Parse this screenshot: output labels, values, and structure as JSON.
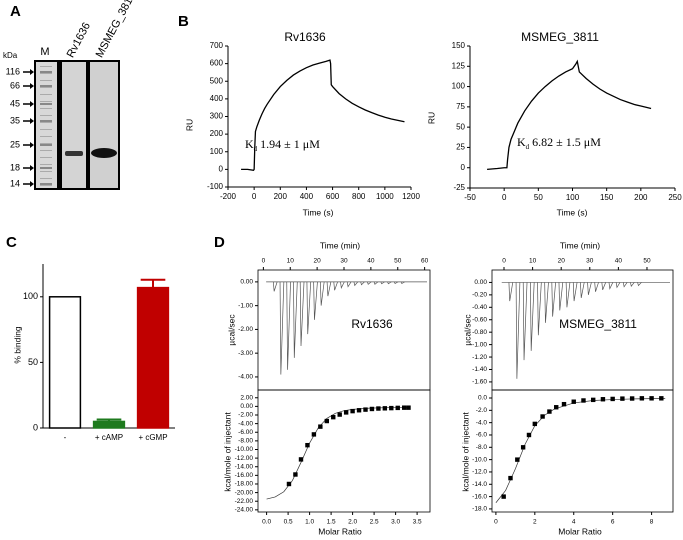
{
  "panel_labels": [
    "A",
    "B",
    "C",
    "D"
  ],
  "gel": {
    "unit": "kDa",
    "lanes": [
      "M",
      "Rv1636",
      "MSMEG_3811"
    ],
    "markers": [
      116,
      66,
      45,
      35,
      25,
      18,
      14
    ]
  },
  "chart_data": [
    {
      "type": "line",
      "title": "Rv1636",
      "xlabel": "Time (s)",
      "ylabel": "RU",
      "annotation": [
        "K",
        "d",
        " 1.94 ± 1 μM"
      ],
      "color": "#000000",
      "x": [
        -100,
        -50,
        -5,
        0,
        5,
        10,
        20,
        40,
        60,
        80,
        100,
        150,
        200,
        250,
        300,
        350,
        400,
        450,
        500,
        550,
        580,
        585,
        590,
        600,
        650,
        700,
        750,
        800,
        850,
        900,
        950,
        1000,
        1050,
        1100,
        1150
      ],
      "values": [
        0,
        0,
        -5,
        0,
        130,
        215,
        240,
        280,
        315,
        345,
        370,
        425,
        470,
        505,
        535,
        558,
        577,
        592,
        603,
        613,
        620,
        600,
        480,
        470,
        430,
        400,
        375,
        355,
        337,
        322,
        308,
        296,
        286,
        278,
        270
      ],
      "xlim": [
        -200,
        1200
      ],
      "xticks": [
        -200,
        0,
        200,
        400,
        600,
        800,
        1000,
        1200
      ],
      "ylim": [
        -100,
        700
      ],
      "yticks": [
        -100,
        0,
        100,
        200,
        300,
        400,
        500,
        600,
        700
      ],
      "frame": false
    },
    {
      "type": "line",
      "title": "MSMEG_3811",
      "xlabel": "Time (s)",
      "ylabel": "RU",
      "annotation": [
        "K",
        "d",
        " 6.82 ± 1.5 μM"
      ],
      "color": "#000000",
      "x": [
        -25,
        -10,
        0,
        4,
        5,
        7,
        10,
        15,
        20,
        30,
        40,
        50,
        60,
        70,
        80,
        90,
        100,
        105,
        107,
        110,
        120,
        130,
        140,
        150,
        160,
        170,
        180,
        190,
        200,
        215
      ],
      "values": [
        -2,
        -1,
        0,
        0,
        10,
        25,
        35,
        45,
        55,
        70,
        82,
        92,
        100,
        107,
        113,
        118,
        122,
        128,
        131,
        118,
        110,
        103,
        97,
        92,
        88,
        84,
        81,
        78,
        76,
        73
      ],
      "xlim": [
        -50,
        250
      ],
      "xticks": [
        -50,
        0,
        50,
        100,
        150,
        200,
        250
      ],
      "ylim": [
        -25,
        150
      ],
      "yticks": [
        -25,
        0,
        25,
        50,
        75,
        100,
        125,
        150
      ],
      "frame": false
    },
    {
      "type": "bar",
      "ylabel": "% binding",
      "categories": [
        "-",
        "+ cAMP",
        "+ cGMP"
      ],
      "values": [
        100,
        5,
        107
      ],
      "errors": [
        null,
        1.5,
        6
      ],
      "colors": [
        "#ffffff",
        "#1e7a1e",
        "#c00000"
      ],
      "ylim": [
        0,
        125
      ],
      "yticks": [
        0,
        50,
        100
      ],
      "frame": false
    },
    {
      "type": "spikes",
      "xlabel": "Time (min)",
      "ylabel": "µcal/sec",
      "annotation": "Rv1636",
      "xaxis_position": "top",
      "color": "#555555",
      "x": [
        4,
        6.5,
        9,
        11.5,
        14,
        16.5,
        19,
        21.5,
        24,
        26.5,
        29,
        31.5,
        34,
        36.5,
        39,
        41.5,
        44,
        46.5,
        49,
        51.5
      ],
      "values": [
        -0.4,
        -3.9,
        -3.7,
        -3.2,
        -2.7,
        -2.2,
        -1.6,
        -1.0,
        -0.6,
        -0.35,
        -0.25,
        -0.2,
        -0.15,
        -0.12,
        -0.1,
        -0.1,
        -0.08,
        -0.08,
        -0.07,
        -0.07
      ],
      "xlim": [
        -2,
        62
      ],
      "xticks": [
        0,
        10,
        20,
        30,
        40,
        50,
        60
      ],
      "ylim": [
        -4.55,
        0.5
      ],
      "yticks": [
        {
          "value": 0,
          "label": "0.00"
        },
        {
          "value": -1,
          "label": "-1.00"
        },
        {
          "value": -2,
          "label": "-2.00"
        },
        {
          "value": -3,
          "label": "-3.00"
        },
        {
          "value": -4,
          "label": "-4.00"
        }
      ],
      "frame": true
    },
    {
      "type": "itc",
      "xlabel": "Molar Ratio",
      "ylabel": "kcal/mole of injectant",
      "color": "#000000",
      "x": [
        0.52,
        0.67,
        0.8,
        0.95,
        1.1,
        1.25,
        1.4,
        1.55,
        1.7,
        1.85,
        2.0,
        2.15,
        2.3,
        2.45,
        2.6,
        2.75,
        2.9,
        3.05,
        3.2,
        3.3
      ],
      "values": [
        -18,
        -15.8,
        -12.3,
        -9,
        -6.5,
        -4.7,
        -3.4,
        -2.5,
        -1.9,
        -1.4,
        -1.1,
        -0.9,
        -0.75,
        -0.6,
        -0.5,
        -0.45,
        -0.4,
        -0.35,
        -0.3,
        -0.3
      ],
      "fit_x": [
        0,
        0.2,
        0.4,
        0.6,
        0.8,
        1.0,
        1.2,
        1.4,
        1.6,
        1.8,
        2.0,
        2.4,
        2.8,
        3.3
      ],
      "fit_values": [
        -21.5,
        -21,
        -19.8,
        -17.2,
        -13,
        -8.5,
        -5,
        -2.8,
        -1.6,
        -1.0,
        -0.7,
        -0.4,
        -0.3,
        -0.25
      ],
      "xlim": [
        -0.2,
        3.8
      ],
      "xticks": [
        {
          "value": 0,
          "label": "0.0"
        },
        0.5,
        {
          "value": 1,
          "label": "1.0"
        },
        1.5,
        {
          "value": 2,
          "label": "2.0"
        },
        2.5,
        {
          "value": 3,
          "label": "3.0"
        },
        3.5
      ],
      "ylim": [
        -24.5,
        3.8
      ],
      "yticks": [
        {
          "value": 2,
          "label": "2.00"
        },
        {
          "value": 0,
          "label": "0.00"
        },
        {
          "value": -2,
          "label": "-2.00"
        },
        {
          "value": -4,
          "label": "-4.00"
        },
        {
          "value": -6,
          "label": "-6.00"
        },
        {
          "value": -8,
          "label": "-8.00"
        },
        {
          "value": -10,
          "label": "-10.00"
        },
        {
          "value": -12,
          "label": "-12.00"
        },
        {
          "value": -14,
          "label": "-14.00"
        },
        {
          "value": -16,
          "label": "-16.00"
        },
        {
          "value": -18,
          "label": "-18.00"
        },
        {
          "value": -20,
          "label": "-20.00"
        },
        {
          "value": -22,
          "label": "-22.00"
        },
        {
          "value": -24,
          "label": "-24.00"
        }
      ],
      "frame": true
    },
    {
      "type": "spikes",
      "xlabel": "Time (min)",
      "ylabel": "µcal/sec",
      "annotation": "MSMEG_3811",
      "xaxis_position": "top",
      "color": "#555555",
      "x": [
        2,
        4.5,
        7,
        9.5,
        12,
        14.5,
        17,
        19.5,
        22,
        24.5,
        27,
        29.5,
        32,
        34.5,
        37,
        39.5,
        42,
        44.5,
        47
      ],
      "values": [
        -0.3,
        -1.55,
        -1.25,
        -1.1,
        -0.85,
        -0.65,
        -0.55,
        -0.45,
        -0.4,
        -0.3,
        -0.25,
        -0.2,
        -0.15,
        -0.12,
        -0.1,
        -0.08,
        -0.07,
        -0.06,
        -0.05
      ],
      "xlim": [
        -4.2,
        59.1
      ],
      "xticks": [
        0,
        10,
        20,
        30,
        40,
        50
      ],
      "ylim": [
        -1.73,
        0.2
      ],
      "yticks": [
        {
          "value": 0,
          "label": "0.00"
        },
        {
          "value": -0.2,
          "label": "-0.20"
        },
        {
          "value": -0.4,
          "label": "-0.40"
        },
        {
          "value": -0.6,
          "label": "-0.60"
        },
        {
          "value": -0.8,
          "label": "-0.80"
        },
        {
          "value": -1,
          "label": "-1.00"
        },
        {
          "value": -1.2,
          "label": "-1.20"
        },
        {
          "value": -1.4,
          "label": "-1.40"
        },
        {
          "value": -1.6,
          "label": "-1.60"
        }
      ],
      "frame": true
    },
    {
      "type": "itc",
      "xlabel": "Molar Ratio",
      "ylabel": "kcal/mole of injectant",
      "color": "#000000",
      "x": [
        0.4,
        0.75,
        1.1,
        1.4,
        1.7,
        2.0,
        2.4,
        2.75,
        3.1,
        3.5,
        4.0,
        4.5,
        5.0,
        5.5,
        6.0,
        6.5,
        7.0,
        7.5,
        8.0,
        8.5
      ],
      "values": [
        -16,
        -13,
        -10,
        -8,
        -6,
        -4.2,
        -3.0,
        -2.2,
        -1.5,
        -1.0,
        -0.6,
        -0.4,
        -0.3,
        -0.2,
        -0.15,
        -0.1,
        -0.08,
        -0.05,
        -0.05,
        -0.05
      ],
      "fit_x": [
        0,
        0.5,
        1,
        1.5,
        2,
        2.5,
        3,
        4,
        5,
        6,
        7,
        8,
        8.7
      ],
      "fit_values": [
        -17,
        -15,
        -11.5,
        -7.5,
        -4.5,
        -2.8,
        -1.8,
        -0.8,
        -0.4,
        -0.25,
        -0.15,
        -0.1,
        -0.08
      ],
      "xlim": [
        -0.2,
        9.1
      ],
      "xticks": [
        0,
        2,
        4,
        6,
        8
      ],
      "ylim": [
        -18.5,
        1.3
      ],
      "yticks": [
        {
          "value": 0,
          "label": "0.0"
        },
        {
          "value": -2,
          "label": "-2.0"
        },
        {
          "value": -4,
          "label": "-4.0"
        },
        {
          "value": -6,
          "label": "-6.0"
        },
        {
          "value": -8,
          "label": "-8.0"
        },
        {
          "value": -10,
          "label": "-10.0"
        },
        {
          "value": -12,
          "label": "-12.0"
        },
        {
          "value": -14,
          "label": "-14.0"
        },
        {
          "value": -16,
          "label": "-16.0"
        },
        {
          "value": -18,
          "label": "-18.0"
        }
      ],
      "frame": true
    }
  ]
}
